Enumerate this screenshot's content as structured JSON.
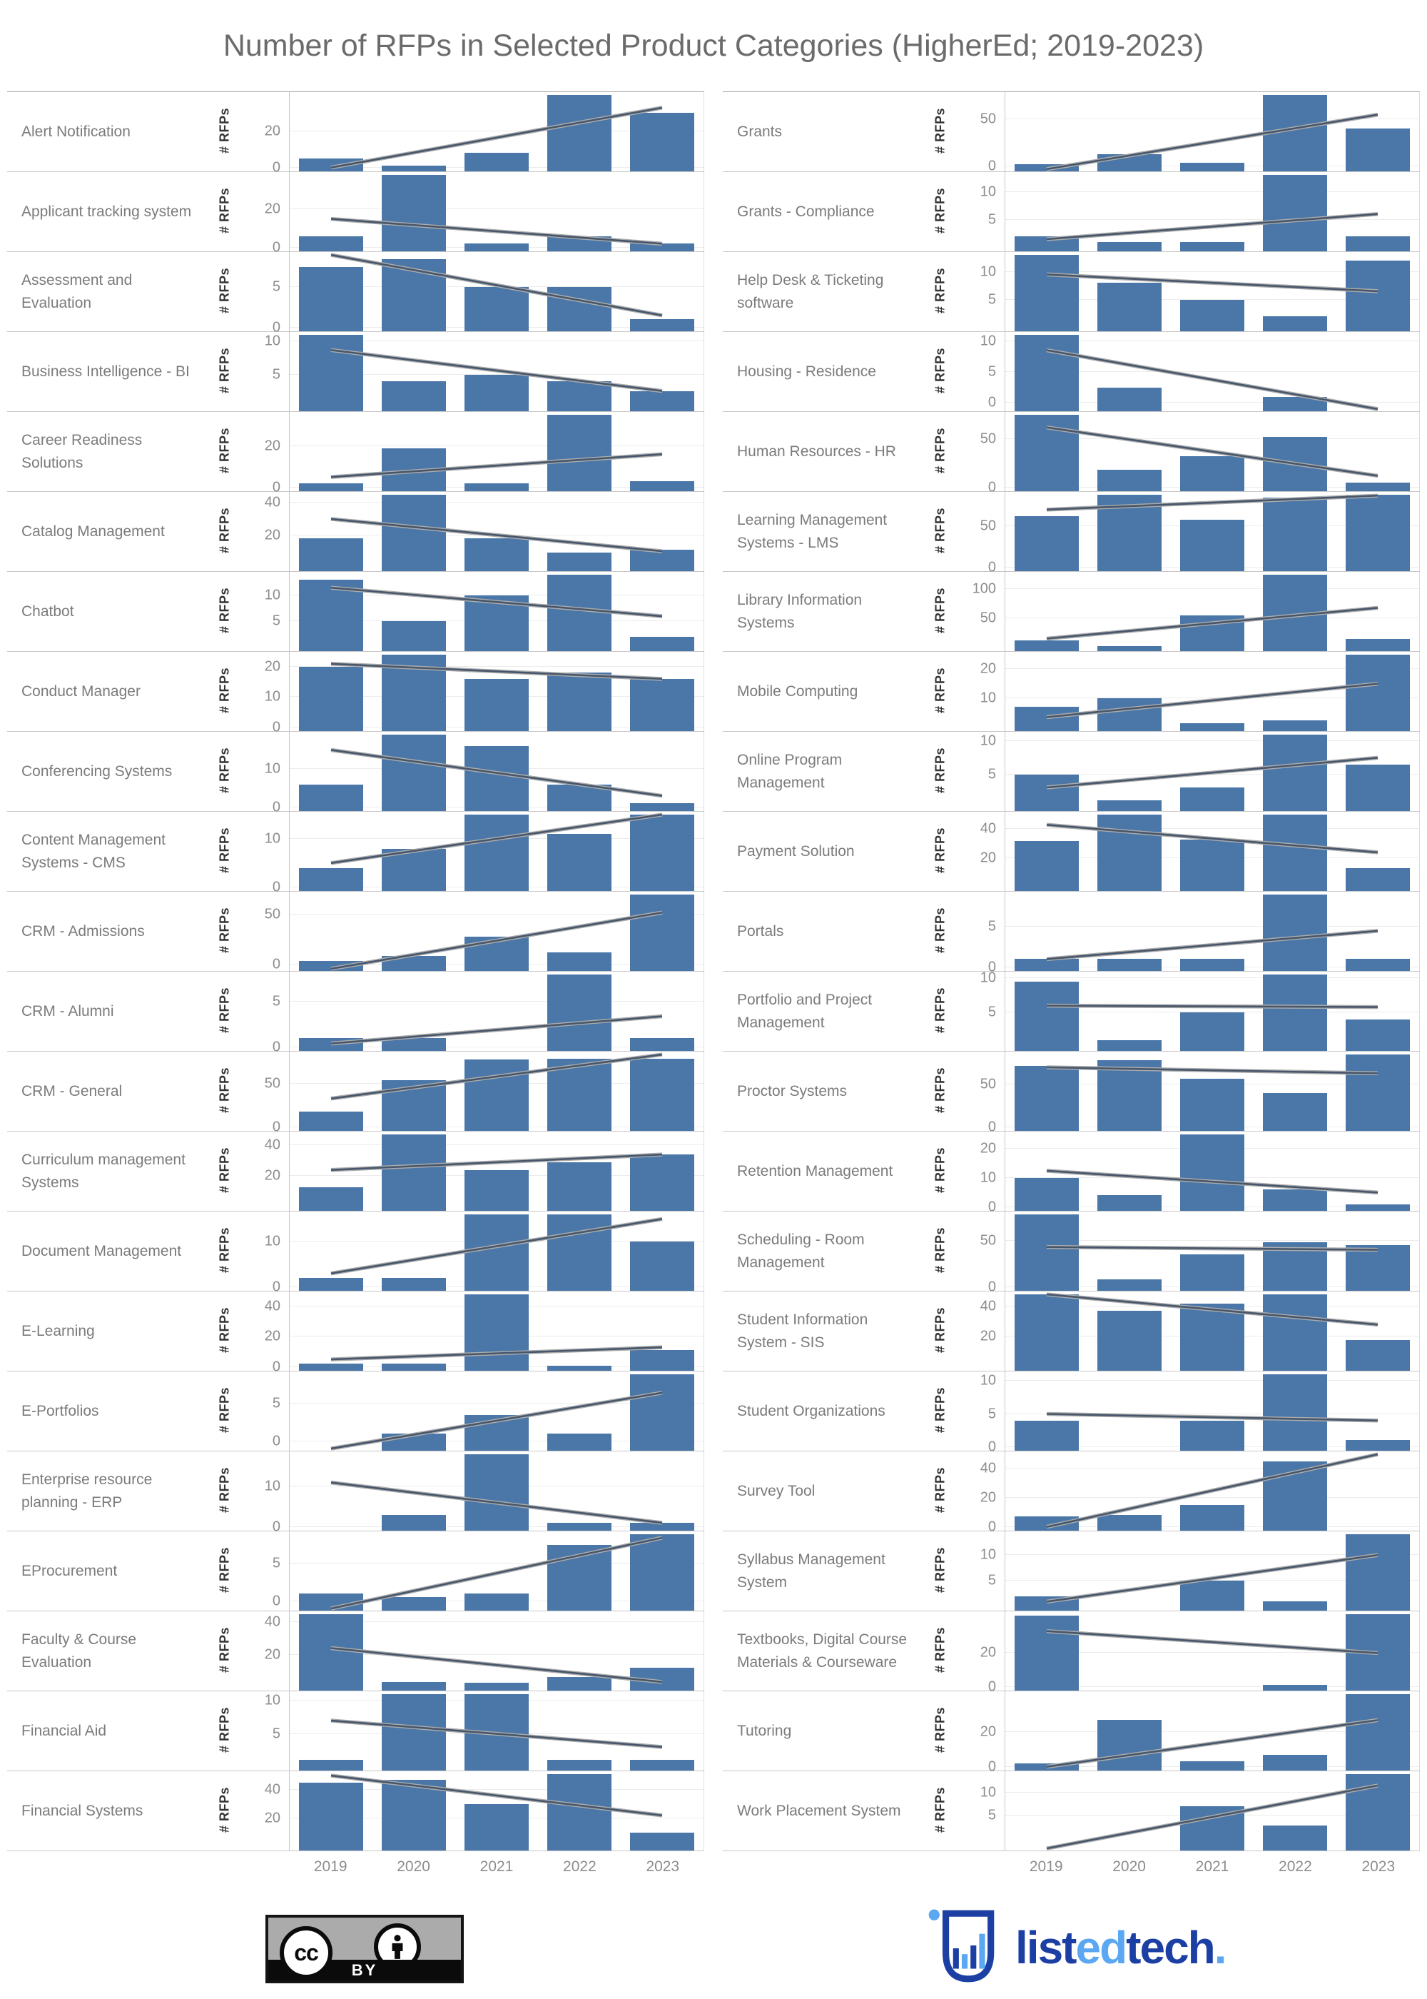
{
  "title": "Number of RFPs in Selected Product Categories (HigherEd; 2019-2023)",
  "ylabel": "# RFPs",
  "years": [
    "2019",
    "2020",
    "2021",
    "2022",
    "2023"
  ],
  "colors": {
    "bar": "#4a77a8",
    "trend_core": "#46566b",
    "trend_halo": "#ababab",
    "gridline": "#ececec",
    "title_text": "#6b6b6b",
    "label_text": "#7b7b7b",
    "tick_text": "#8d8d8d"
  },
  "footer": {
    "license_label": "BY",
    "license_icon": "cc",
    "brand": {
      "part1": "list",
      "part2": "ed",
      "part3": "tech",
      "suffix": "."
    }
  },
  "chart_data": {
    "type": "bar",
    "x": [
      "2019",
      "2020",
      "2021",
      "2022",
      "2023"
    ],
    "ylabel": "# RFPs",
    "title": "Number of RFPs in Selected Product Categories (HigherEd; 2019-2023)",
    "legend": "none",
    "grid": "horizontal-light",
    "note": "44 small-multiple panels, independent y scales; gray line = linear trend",
    "columns": [
      [
        {
          "label": "Alert Notification",
          "ticks": [
            0,
            20
          ],
          "values": [
            5,
            1,
            8,
            40,
            30
          ],
          "trend": [
            0,
            33
          ]
        },
        {
          "label": "Applicant tracking system",
          "ticks": [
            0,
            20
          ],
          "values": [
            6,
            38,
            2,
            6,
            2
          ],
          "trend": [
            15,
            2
          ]
        },
        {
          "label": "Assessment and Evaluation",
          "ticks": [
            0,
            5
          ],
          "values": [
            7.5,
            8.5,
            5,
            5,
            1
          ],
          "trend": [
            9,
            1.5
          ]
        },
        {
          "label": "Business Intelligence - BI",
          "ticks": [
            5,
            10
          ],
          "values": [
            11,
            4,
            5,
            4,
            2.5
          ],
          "trend": [
            8.7,
            2.5
          ]
        },
        {
          "label": "Career Readiness Solutions",
          "ticks": [
            0,
            20
          ],
          "values": [
            2,
            19,
            2,
            35,
            3
          ],
          "trend": [
            5,
            16
          ]
        },
        {
          "label": "Catalog Management",
          "ticks": [
            20,
            40
          ],
          "values": [
            18,
            45,
            18,
            9,
            11
          ],
          "trend": [
            30,
            10
          ]
        },
        {
          "label": "Chatbot",
          "ticks": [
            5,
            10
          ],
          "values": [
            13,
            5,
            10,
            14,
            2
          ],
          "trend": [
            11.5,
            6
          ]
        },
        {
          "label": "Conduct Manager",
          "ticks": [
            0,
            10,
            20
          ],
          "values": [
            20,
            24,
            16,
            18,
            16
          ],
          "trend": [
            21,
            16
          ]
        },
        {
          "label": "Conferencing Systems",
          "ticks": [
            0,
            10
          ],
          "values": [
            6,
            19,
            16,
            6,
            1
          ],
          "trend": [
            15,
            3
          ]
        },
        {
          "label": "Content Management Systems - CMS",
          "ticks": [
            0,
            10
          ],
          "values": [
            4,
            8,
            15,
            11,
            15
          ],
          "trend": [
            5,
            15
          ]
        },
        {
          "label": "CRM - Admissions",
          "ticks": [
            0,
            50
          ],
          "values": [
            4,
            9,
            28,
            12,
            70
          ],
          "trend": [
            -4,
            52
          ]
        },
        {
          "label": "CRM - Alumni",
          "ticks": [
            0,
            5
          ],
          "values": [
            1,
            1,
            0,
            8,
            1
          ],
          "trend": [
            0.4,
            3.4
          ]
        },
        {
          "label": "CRM - General",
          "ticks": [
            0,
            50
          ],
          "values": [
            18,
            54,
            78,
            79,
            79
          ],
          "trend": [
            33,
            84
          ]
        },
        {
          "label": "Curriculum management Systems",
          "ticks": [
            20,
            40
          ],
          "values": [
            13,
            47,
            24,
            29,
            34
          ],
          "trend": [
            24,
            34
          ]
        },
        {
          "label": "Document Management",
          "ticks": [
            0,
            10
          ],
          "values": [
            2,
            2,
            16,
            16,
            10
          ],
          "trend": [
            3,
            15
          ]
        },
        {
          "label": "E-Learning",
          "ticks": [
            0,
            20,
            40
          ],
          "values": [
            2,
            2,
            48,
            1,
            11
          ],
          "trend": [
            5,
            13
          ]
        },
        {
          "label": "E-Portfolios",
          "ticks": [
            0,
            5
          ],
          "values": [
            0,
            1,
            3.5,
            1,
            9
          ],
          "trend": [
            -1,
            6.5
          ]
        },
        {
          "label": "Enterprise resource planning - ERP",
          "ticks": [
            0,
            10
          ],
          "values": [
            0,
            3,
            18,
            1,
            1
          ],
          "trend": [
            11,
            1
          ]
        },
        {
          "label": "EProcurement",
          "ticks": [
            0,
            5
          ],
          "values": [
            1,
            0.5,
            1,
            7.5,
            9
          ],
          "trend": [
            -1,
            8.5
          ]
        },
        {
          "label": "Faculty & Course Evaluation",
          "ticks": [
            20,
            40
          ],
          "values": [
            45,
            3,
            2.5,
            6,
            12
          ],
          "trend": [
            24,
            3
          ]
        },
        {
          "label": "Financial Aid",
          "ticks": [
            5,
            10
          ],
          "values": [
            1,
            11,
            11,
            1,
            1
          ],
          "trend": [
            7,
            3
          ]
        },
        {
          "label": "Financial Systems",
          "ticks": [
            20,
            40
          ],
          "values": [
            45,
            47,
            30,
            51,
            10
          ],
          "trend": [
            50,
            22
          ]
        }
      ],
      [
        {
          "label": "Grants",
          "ticks": [
            0,
            50
          ],
          "values": [
            2,
            13,
            4,
            76,
            40
          ],
          "trend": [
            -3,
            55
          ]
        },
        {
          "label": "Grants - Compliance",
          "ticks": [
            5,
            10
          ],
          "values": [
            2,
            1,
            1,
            13,
            2
          ],
          "trend": [
            1.5,
            6
          ]
        },
        {
          "label": "Help Desk & Ticketing software",
          "ticks": [
            5,
            10
          ],
          "values": [
            13,
            8,
            5,
            2,
            12
          ],
          "trend": [
            9.5,
            6.5
          ]
        },
        {
          "label": "Housing - Residence",
          "ticks": [
            0,
            5,
            10
          ],
          "values": [
            11,
            2.5,
            0,
            1,
            0
          ],
          "trend": [
            8.5,
            -1
          ]
        },
        {
          "label": "Human Resources - HR",
          "ticks": [
            0,
            50
          ],
          "values": [
            75,
            18,
            32,
            52,
            5
          ],
          "trend": [
            62,
            12
          ]
        },
        {
          "label": "Learning Management Systems - LMS",
          "ticks": [
            0,
            50
          ],
          "values": [
            62,
            88,
            58,
            85,
            88
          ],
          "trend": [
            70,
            87
          ]
        },
        {
          "label": "Library Information Systems",
          "ticks": [
            50,
            100
          ],
          "values": [
            12,
            2,
            55,
            125,
            15
          ],
          "trend": [
            15,
            68
          ]
        },
        {
          "label": "Mobile Computing",
          "ticks": [
            10,
            20
          ],
          "values": [
            7,
            10,
            1.5,
            2.5,
            25
          ],
          "trend": [
            3.5,
            15
          ]
        },
        {
          "label": "Online Program Management",
          "ticks": [
            5,
            10
          ],
          "values": [
            5,
            1,
            3,
            11,
            6.5
          ],
          "trend": [
            3,
            7.5
          ]
        },
        {
          "label": "Payment Solution",
          "ticks": [
            20,
            40
          ],
          "values": [
            32,
            50,
            33,
            50,
            13
          ],
          "trend": [
            43,
            24
          ]
        },
        {
          "label": "Portals",
          "ticks": [
            0,
            5
          ],
          "values": [
            1,
            1,
            1,
            9,
            1
          ],
          "trend": [
            1,
            4.5
          ]
        },
        {
          "label": "Portfolio and Project Management",
          "ticks": [
            5,
            10
          ],
          "values": [
            9.5,
            1,
            5,
            10.5,
            4
          ],
          "trend": [
            6,
            5.8
          ]
        },
        {
          "label": "Proctor Systems",
          "ticks": [
            0,
            50
          ],
          "values": [
            72,
            78,
            57,
            40,
            85
          ],
          "trend": [
            70,
            63
          ]
        },
        {
          "label": "Retention Management",
          "ticks": [
            0,
            10,
            20
          ],
          "values": [
            10,
            4,
            25,
            6,
            1
          ],
          "trend": [
            12.5,
            5
          ]
        },
        {
          "label": "Scheduling - Room Management",
          "ticks": [
            0,
            50
          ],
          "values": [
            78,
            8,
            35,
            48,
            45
          ],
          "trend": [
            43,
            40
          ]
        },
        {
          "label": "Student Information System - SIS",
          "ticks": [
            20,
            40
          ],
          "values": [
            48,
            37,
            42,
            48,
            18
          ],
          "trend": [
            48,
            28
          ]
        },
        {
          "label": "Student Organizations",
          "ticks": [
            0,
            5,
            10
          ],
          "values": [
            4,
            0,
            4,
            11,
            1
          ],
          "trend": [
            5,
            4
          ]
        },
        {
          "label": "Survey Tool",
          "ticks": [
            0,
            20,
            40
          ],
          "values": [
            7,
            8,
            15,
            45,
            0
          ],
          "trend": [
            0,
            50
          ]
        },
        {
          "label": "Syllabus Management System",
          "ticks": [
            5,
            10
          ],
          "values": [
            2,
            0,
            5,
            1,
            14
          ],
          "trend": [
            1,
            10
          ]
        },
        {
          "label": "Textbooks, Digital Course Materials & Courseware",
          "ticks": [
            0,
            20
          ],
          "values": [
            42,
            0,
            0,
            1,
            43
          ],
          "trend": [
            33,
            20
          ]
        },
        {
          "label": "Tutoring",
          "ticks": [
            0,
            20
          ],
          "values": [
            2,
            27,
            3,
            7,
            42
          ],
          "trend": [
            0,
            27
          ]
        },
        {
          "label": "Work Placement System",
          "ticks": [
            5,
            10
          ],
          "values": [
            0,
            0,
            7,
            3,
            14
          ],
          "trend": [
            -2,
            11.5
          ]
        }
      ]
    ]
  }
}
